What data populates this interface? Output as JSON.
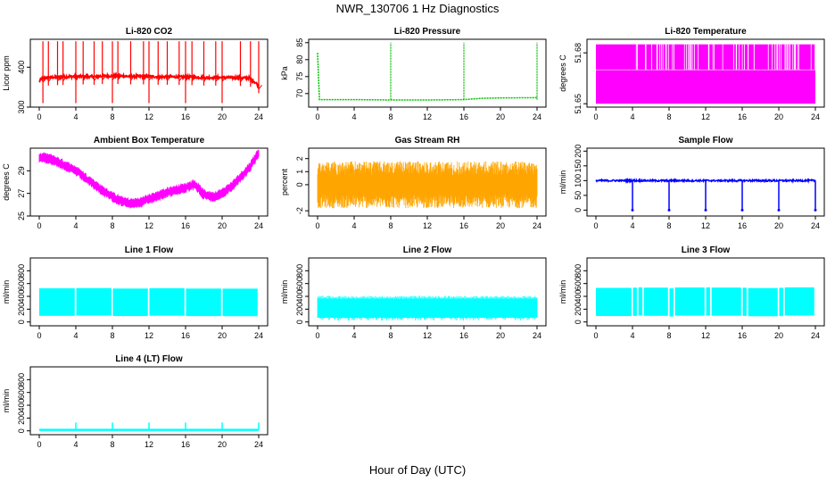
{
  "figure": {
    "title": "NWR_130706  1 Hz Diagnostics",
    "xlabel": "Hour of Day (UTC)"
  },
  "chart_data": [
    {
      "id": "co2",
      "type": "line",
      "title": "Li-820 CO2",
      "ylabel": "Licor ppm",
      "color": "#ff0000",
      "xlim": [
        0,
        24
      ],
      "ylim": [
        300,
        470
      ],
      "xticks": [
        "0",
        "4",
        "8",
        "12",
        "16",
        "20",
        "24"
      ],
      "yticks": [
        "300",
        "400"
      ],
      "x": [
        0,
        0.3,
        1,
        2,
        3,
        4,
        5,
        6,
        7,
        8,
        9,
        10,
        11,
        12,
        13,
        14,
        15,
        16,
        17,
        18,
        19,
        20,
        21,
        22,
        23,
        24
      ],
      "y": [
        365,
        372,
        374,
        375,
        376,
        377,
        377,
        376,
        378,
        378,
        378,
        377,
        377,
        377,
        376,
        376,
        376,
        375,
        375,
        374,
        374,
        374,
        374,
        373,
        373,
        355
      ],
      "spikes_x": [
        0.4,
        1.0,
        2.0,
        2.6,
        4.0,
        4.8,
        6.0,
        6.9,
        8.0,
        8.6,
        10.0,
        11.4,
        12.0,
        13.0,
        14.0,
        15.3,
        16.0,
        16.7,
        18.0,
        19.3,
        20.0,
        22.0,
        23.1,
        24.0
      ],
      "spike_max": 465,
      "spike_min": 310
    },
    {
      "id": "pressure",
      "type": "line",
      "title": "Li-820 Pressure",
      "ylabel": "kPa",
      "color": "#00c000",
      "xlim": [
        0,
        24
      ],
      "ylim": [
        66,
        86
      ],
      "xticks": [
        "0",
        "4",
        "8",
        "12",
        "16",
        "20",
        "24"
      ],
      "yticks": [
        "70",
        "75",
        "80",
        "85"
      ],
      "x": [
        0,
        0.1,
        0.2,
        4,
        8,
        12,
        16,
        18,
        20,
        24
      ],
      "y": [
        82,
        75,
        68.2,
        68.2,
        68.1,
        68.1,
        68.2,
        68.6,
        68.7,
        68.8
      ],
      "spikes_x": [
        8.0,
        16.0,
        24.0
      ],
      "spike_max": 85
    },
    {
      "id": "licor_temp",
      "type": "line",
      "title": "Li-820 Temperature",
      "ylabel": "degrees C",
      "color": "#ff00ff",
      "xlim": [
        0,
        24
      ],
      "ylim": [
        51.648,
        51.688
      ],
      "xticks": [
        "0",
        "4",
        "8",
        "12",
        "16",
        "20",
        "24"
      ],
      "yticks": [
        "51.65",
        "51.68"
      ],
      "levels": [
        51.65,
        51.67,
        51.685
      ],
      "band": [
        51.65,
        51.685
      ]
    },
    {
      "id": "box_temp",
      "type": "line",
      "title": "Ambient Box Temperature",
      "ylabel": "degrees C",
      "color": "#ff00ff",
      "xlim": [
        0,
        24
      ],
      "ylim": [
        25,
        31
      ],
      "xticks": [
        "0",
        "4",
        "8",
        "12",
        "16",
        "20",
        "24"
      ],
      "yticks": [
        "25",
        "27",
        "29"
      ],
      "x": [
        0,
        1,
        2,
        3,
        4,
        5,
        6,
        7,
        8,
        9,
        10,
        11,
        12,
        13,
        14,
        15,
        16,
        17,
        18,
        19,
        20,
        21,
        22,
        23,
        24
      ],
      "y": [
        30.2,
        30.1,
        29.8,
        29.4,
        29.0,
        28.4,
        27.8,
        27.2,
        26.7,
        26.3,
        26.1,
        26.2,
        26.5,
        26.8,
        27.1,
        27.3,
        27.5,
        27.8,
        26.9,
        26.7,
        27.0,
        27.6,
        28.4,
        29.3,
        30.6
      ],
      "noise": 0.6
    },
    {
      "id": "rh",
      "type": "line",
      "title": "Gas Stream RH",
      "ylabel": "percent",
      "color": "#ffa500",
      "xlim": [
        0,
        24
      ],
      "ylim": [
        -2.4,
        2.8
      ],
      "xticks": [
        "0",
        "4",
        "8",
        "12",
        "16",
        "20",
        "24"
      ],
      "yticks": [
        "-2",
        "0",
        "1",
        "2"
      ],
      "band": [
        -1.8,
        1.8
      ]
    },
    {
      "id": "sample_flow",
      "type": "line",
      "title": "Sample Flow",
      "ylabel": "ml/min",
      "color": "#0000ff",
      "xlim": [
        0,
        24
      ],
      "ylim": [
        -20,
        210
      ],
      "xticks": [
        "0",
        "4",
        "8",
        "12",
        "16",
        "20",
        "24"
      ],
      "yticks": [
        "0",
        "50",
        "100",
        "150",
        "200"
      ],
      "x": [
        0,
        24
      ],
      "y": [
        100,
        100
      ],
      "dips_x": [
        4.0,
        8.0,
        12.0,
        16.0,
        20.0,
        24.0
      ],
      "dip_min": 0
    },
    {
      "id": "line1",
      "type": "line",
      "title": "Line 1 Flow",
      "ylabel": "ml/min",
      "color": "#00ffff",
      "xlim": [
        0,
        24
      ],
      "ylim": [
        -60,
        1000
      ],
      "xticks": [
        "0",
        "4",
        "8",
        "12",
        "16",
        "20",
        "24"
      ],
      "yticks": [
        "0",
        "200",
        "400",
        "600",
        "800"
      ],
      "band": [
        100,
        530
      ],
      "gaps_x": [
        4.0,
        8.0,
        12.0,
        16.0,
        20.0,
        24.0
      ]
    },
    {
      "id": "line2",
      "type": "line",
      "title": "Line 2 Flow",
      "ylabel": "ml/min",
      "color": "#00ffff",
      "xlim": [
        0,
        24
      ],
      "ylim": [
        -60,
        1000
      ],
      "xticks": [
        "0",
        "4",
        "8",
        "12",
        "16",
        "20",
        "24"
      ],
      "yticks": [
        "0",
        "200",
        "400",
        "600",
        "800"
      ],
      "band": [
        80,
        380
      ]
    },
    {
      "id": "line3",
      "type": "line",
      "title": "Line 3 Flow",
      "ylabel": "ml/min",
      "color": "#00ffff",
      "xlim": [
        0,
        24
      ],
      "ylim": [
        -60,
        1000
      ],
      "xticks": [
        "0",
        "4",
        "8",
        "12",
        "16",
        "20",
        "24"
      ],
      "yticks": [
        "0",
        "200",
        "400",
        "600",
        "800"
      ],
      "band": [
        100,
        540
      ],
      "gaps_x": [
        4.0,
        4.6,
        5.2,
        8.0,
        8.6,
        12.0,
        12.6,
        16.0,
        16.6,
        20.0,
        20.6,
        24.0
      ]
    },
    {
      "id": "line4",
      "type": "line",
      "title": "Line 4 (LT) Flow",
      "ylabel": "ml/min",
      "color": "#00ffff",
      "xlim": [
        0,
        24
      ],
      "ylim": [
        -60,
        1000
      ],
      "xticks": [
        "0",
        "4",
        "8",
        "12",
        "16",
        "20",
        "24"
      ],
      "yticks": [
        "0",
        "200",
        "400",
        "600",
        "800"
      ],
      "x": [
        0,
        24
      ],
      "y": [
        15,
        15
      ],
      "spikes_x": [
        4.0,
        8.0,
        12.0,
        16.0,
        20.0,
        24.0
      ],
      "spike_max": 130
    }
  ]
}
